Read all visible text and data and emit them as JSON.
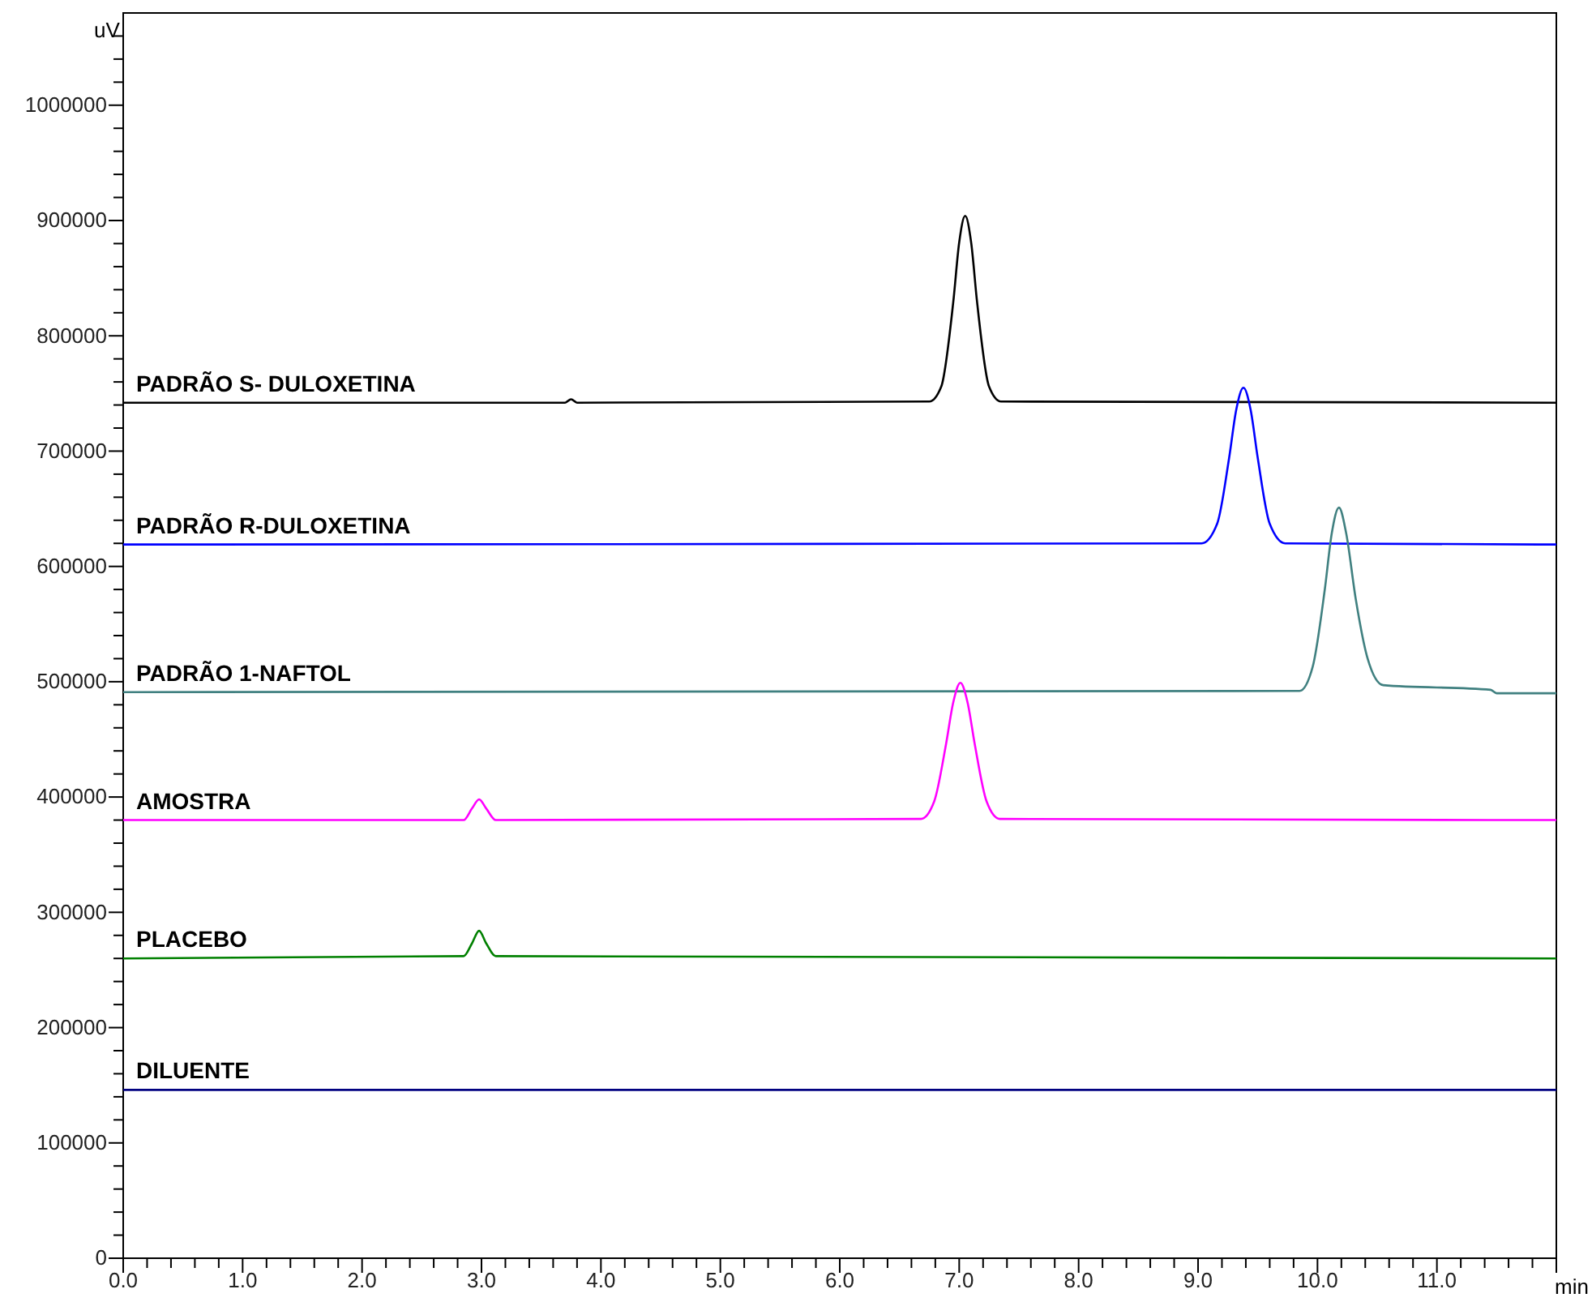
{
  "chart_data": {
    "type": "line",
    "xlabel": "min",
    "ylabel": "uV",
    "xlim": [
      0,
      12
    ],
    "ylim": [
      0,
      1080000
    ],
    "grid": false,
    "legend": false,
    "marker": "none",
    "line_style": "solid",
    "xticks": [
      {
        "value": 0,
        "label": "0.0"
      },
      {
        "value": 0.2,
        "label": null
      },
      {
        "value": 0.4,
        "label": null
      },
      {
        "value": 0.6,
        "label": null
      },
      {
        "value": 0.8,
        "label": null
      },
      {
        "value": 1,
        "label": "1.0"
      },
      {
        "value": 1.2,
        "label": null
      },
      {
        "value": 1.4,
        "label": null
      },
      {
        "value": 1.6,
        "label": null
      },
      {
        "value": 1.8,
        "label": null
      },
      {
        "value": 2,
        "label": "2.0"
      },
      {
        "value": 2.2,
        "label": null
      },
      {
        "value": 2.4,
        "label": null
      },
      {
        "value": 2.6,
        "label": null
      },
      {
        "value": 2.8,
        "label": null
      },
      {
        "value": 3,
        "label": "3.0"
      },
      {
        "value": 3.2,
        "label": null
      },
      {
        "value": 3.4,
        "label": null
      },
      {
        "value": 3.6,
        "label": null
      },
      {
        "value": 3.8,
        "label": null
      },
      {
        "value": 4,
        "label": "4.0"
      },
      {
        "value": 4.2,
        "label": null
      },
      {
        "value": 4.4,
        "label": null
      },
      {
        "value": 4.6,
        "label": null
      },
      {
        "value": 4.8,
        "label": null
      },
      {
        "value": 5,
        "label": "5.0"
      },
      {
        "value": 5.2,
        "label": null
      },
      {
        "value": 5.4,
        "label": null
      },
      {
        "value": 5.6,
        "label": null
      },
      {
        "value": 5.8,
        "label": null
      },
      {
        "value": 6,
        "label": "6.0"
      },
      {
        "value": 6.2,
        "label": null
      },
      {
        "value": 6.4,
        "label": null
      },
      {
        "value": 6.6,
        "label": null
      },
      {
        "value": 6.8,
        "label": null
      },
      {
        "value": 7,
        "label": "7.0"
      },
      {
        "value": 7.2,
        "label": null
      },
      {
        "value": 7.4,
        "label": null
      },
      {
        "value": 7.6,
        "label": null
      },
      {
        "value": 7.8,
        "label": null
      },
      {
        "value": 8,
        "label": "8.0"
      },
      {
        "value": 8.2,
        "label": null
      },
      {
        "value": 8.4,
        "label": null
      },
      {
        "value": 8.6,
        "label": null
      },
      {
        "value": 8.8,
        "label": null
      },
      {
        "value": 9,
        "label": "9.0"
      },
      {
        "value": 9.2,
        "label": null
      },
      {
        "value": 9.4,
        "label": null
      },
      {
        "value": 9.6,
        "label": null
      },
      {
        "value": 9.8,
        "label": null
      },
      {
        "value": 10,
        "label": "10.0"
      },
      {
        "value": 10.2,
        "label": null
      },
      {
        "value": 10.4,
        "label": null
      },
      {
        "value": 10.6,
        "label": null
      },
      {
        "value": 10.8,
        "label": null
      },
      {
        "value": 11,
        "label": "11.0"
      },
      {
        "value": 11.2,
        "label": null
      },
      {
        "value": 11.4,
        "label": null
      },
      {
        "value": 11.6,
        "label": null
      },
      {
        "value": 11.8,
        "label": null
      },
      {
        "value": 12,
        "label": null
      }
    ],
    "yticks": [
      0,
      {
        "value": 20000,
        "label": null
      },
      {
        "value": 40000,
        "label": null
      },
      {
        "value": 60000,
        "label": null
      },
      {
        "value": 80000,
        "label": null
      },
      100000,
      {
        "value": 120000,
        "label": null
      },
      {
        "value": 140000,
        "label": null
      },
      {
        "value": 160000,
        "label": null
      },
      {
        "value": 180000,
        "label": null
      },
      200000,
      {
        "value": 220000,
        "label": null
      },
      {
        "value": 240000,
        "label": null
      },
      {
        "value": 260000,
        "label": null
      },
      {
        "value": 280000,
        "label": null
      },
      300000,
      {
        "value": 320000,
        "label": null
      },
      {
        "value": 340000,
        "label": null
      },
      {
        "value": 360000,
        "label": null
      },
      {
        "value": 380000,
        "label": null
      },
      400000,
      {
        "value": 420000,
        "label": null
      },
      {
        "value": 440000,
        "label": null
      },
      {
        "value": 460000,
        "label": null
      },
      {
        "value": 480000,
        "label": null
      },
      500000,
      {
        "value": 520000,
        "label": null
      },
      {
        "value": 540000,
        "label": null
      },
      {
        "value": 560000,
        "label": null
      },
      {
        "value": 580000,
        "label": null
      },
      600000,
      {
        "value": 620000,
        "label": null
      },
      {
        "value": 640000,
        "label": null
      },
      {
        "value": 660000,
        "label": null
      },
      {
        "value": 680000,
        "label": null
      },
      700000,
      {
        "value": 720000,
        "label": null
      },
      {
        "value": 740000,
        "label": null
      },
      {
        "value": 760000,
        "label": null
      },
      {
        "value": 780000,
        "label": null
      },
      800000,
      {
        "value": 820000,
        "label": null
      },
      {
        "value": 840000,
        "label": null
      },
      {
        "value": 860000,
        "label": null
      },
      {
        "value": 880000,
        "label": null
      },
      900000,
      {
        "value": 920000,
        "label": null
      },
      {
        "value": 940000,
        "label": null
      },
      {
        "value": 960000,
        "label": null
      },
      {
        "value": 980000,
        "label": null
      },
      1000000,
      {
        "value": 1020000,
        "label": null
      },
      {
        "value": 1040000,
        "label": null
      },
      {
        "value": 1060000,
        "label": null
      }
    ],
    "annotations": [
      {
        "text": "PADRÃO S- DULOXETINA",
        "y": 742000
      },
      {
        "text": "PADRÃO R-DULOXETINA",
        "y": 619000
      },
      {
        "text": "PADRÃO 1-NAFTOL",
        "y": 491000
      },
      {
        "text": "AMOSTRA",
        "y": 380000
      },
      {
        "text": "PLACEBO",
        "y": 260000
      },
      {
        "text": "DILUENTE",
        "y": 146000
      }
    ],
    "series": [
      {
        "color": "#000000",
        "x": [
          0,
          3.7,
          3.75,
          3.8,
          6.75,
          6.85,
          6.95,
          7.0,
          7.05,
          7.1,
          7.15,
          7.25,
          7.35,
          12
        ],
        "values": [
          742000,
          742000,
          745000,
          742000,
          743000,
          756000,
          829000,
          881000,
          904000,
          881000,
          829000,
          756000,
          743000,
          742000
        ]
      },
      {
        "color": "#0000ff",
        "x": [
          0,
          9.03,
          9.16,
          9.26,
          9.32,
          9.38,
          9.44,
          9.5,
          9.6,
          9.73,
          12
        ],
        "values": [
          619000,
          620000,
          637000,
          694000,
          736000,
          755000,
          736000,
          694000,
          637000,
          620000,
          619000
        ]
      },
      {
        "color": "#408080",
        "x": [
          0,
          9.85,
          9.96,
          10.06,
          10.12,
          10.18,
          10.24,
          10.32,
          10.42,
          10.55,
          11.45,
          11.5,
          12
        ],
        "values": [
          491000,
          492000,
          513000,
          579000,
          629000,
          651000,
          629000,
          572000,
          520000,
          497000,
          493000,
          490000,
          490000
        ]
      },
      {
        "color": "#ff00ff",
        "x": [
          0,
          2.85,
          2.92,
          2.98,
          3.04,
          3.12,
          6.68,
          6.79,
          6.89,
          6.95,
          7.01,
          7.07,
          7.13,
          7.23,
          7.34,
          12
        ],
        "values": [
          380000,
          380000,
          390000,
          398000,
          390000,
          380000,
          381000,
          396000,
          446000,
          482000,
          499000,
          482000,
          446000,
          396000,
          381000,
          380000
        ]
      },
      {
        "color": "#008000",
        "x": [
          0,
          2.85,
          2.92,
          2.98,
          3.04,
          3.12,
          12
        ],
        "values": [
          260000,
          262000,
          273000,
          284000,
          273000,
          262000,
          260000
        ]
      },
      {
        "color": "#000080",
        "x": [
          0,
          12
        ],
        "values": [
          146000,
          146000
        ]
      }
    ]
  }
}
